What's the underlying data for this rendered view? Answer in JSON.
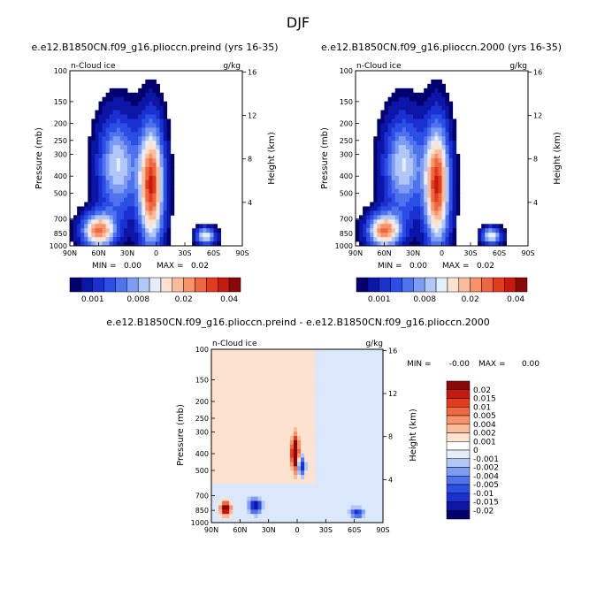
{
  "figure": {
    "title": "DJF",
    "field_label": "n-Cloud ice",
    "units": "g/kg",
    "left_axis_label": "Pressure (mb)",
    "right_axis_label": "Height (km)"
  },
  "palettes": {
    "absolute": [
      "#02006e",
      "#0c16a6",
      "#1a30d0",
      "#2b4ee6",
      "#4f72ee",
      "#7d9cf2",
      "#b0c8f8",
      "#e6eefc",
      "#fde2cf",
      "#fbbc9c",
      "#f7926a",
      "#f06640",
      "#e23c1c",
      "#c81a0c",
      "#8a0808"
    ],
    "difference": [
      "#02006e",
      "#0c16a6",
      "#1a30d0",
      "#2b4ee6",
      "#4f72ee",
      "#7d9cf2",
      "#b0c8f8",
      "#e6eefc",
      "#ffffff",
      "#fde2cf",
      "#fbbc9c",
      "#f7926a",
      "#f06640",
      "#e23c1c",
      "#c81a0c",
      "#8a0808"
    ]
  },
  "chart_data": [
    {
      "type": "heatmap",
      "title": "e.e12.B1850CN.f09_g16.plioccn.preind (yrs 16-35)",
      "field": "n-Cloud ice",
      "units": "g/kg",
      "xlabel": "",
      "ylabel": "Pressure (mb)",
      "y2label": "Height (km)",
      "x_ticks": [
        "90N",
        "60N",
        "30N",
        "0",
        "30S",
        "60S",
        "90S"
      ],
      "x_range": [
        90,
        -90
      ],
      "y_ticks": [
        100,
        150,
        200,
        250,
        300,
        400,
        500,
        700,
        850,
        1000
      ],
      "y_range": [
        1000,
        100
      ],
      "y_scale": "log",
      "y2_ticks": [
        4,
        8,
        12,
        16
      ],
      "stats": {
        "min_label": "MIN =",
        "min": "0.00",
        "max_label": "MAX =",
        "max": "0.02"
      },
      "colorbar": {
        "orientation": "horizontal",
        "labels": [
          "0.001",
          "0.008",
          "0.02",
          "0.04"
        ]
      },
      "features": [
        {
          "lat": 5,
          "p": 450,
          "amp": 1.0,
          "wlat": 9,
          "wlogp": 0.55
        },
        {
          "lat": 60,
          "p": 820,
          "amp": 0.85,
          "wlat": 12,
          "wlogp": 0.16
        },
        {
          "lat": -52,
          "p": 880,
          "amp": 0.62,
          "wlat": 7,
          "wlogp": 0.08
        },
        {
          "lat": 40,
          "p": 350,
          "amp": 0.55,
          "wlat": 14,
          "wlogp": 0.45
        }
      ]
    },
    {
      "type": "heatmap",
      "title": "e.e12.B1850CN.f09_g16.plioccn.2000 (yrs 16-35)",
      "field": "n-Cloud ice",
      "units": "g/kg",
      "xlabel": "",
      "ylabel": "Pressure (mb)",
      "y2label": "Height (km)",
      "x_ticks": [
        "90N",
        "60N",
        "30N",
        "0",
        "30S",
        "60S",
        "90S"
      ],
      "x_range": [
        90,
        -90
      ],
      "y_ticks": [
        100,
        150,
        200,
        250,
        300,
        400,
        500,
        700,
        850,
        1000
      ],
      "y_range": [
        1000,
        100
      ],
      "y_scale": "log",
      "y2_ticks": [
        4,
        8,
        12,
        16
      ],
      "stats": {
        "min_label": "MIN =",
        "min": "0.00",
        "max_label": "MAX =",
        "max": "0.02"
      },
      "colorbar": {
        "orientation": "horizontal",
        "labels": [
          "0.001",
          "0.008",
          "0.02",
          "0.04"
        ]
      },
      "features": [
        {
          "lat": 5,
          "p": 450,
          "amp": 1.0,
          "wlat": 9,
          "wlogp": 0.55
        },
        {
          "lat": 60,
          "p": 820,
          "amp": 0.85,
          "wlat": 12,
          "wlogp": 0.16
        },
        {
          "lat": -52,
          "p": 880,
          "amp": 0.62,
          "wlat": 7,
          "wlogp": 0.08
        },
        {
          "lat": 40,
          "p": 350,
          "amp": 0.55,
          "wlat": 14,
          "wlogp": 0.45
        }
      ]
    },
    {
      "type": "heatmap",
      "title": "e.e12.B1850CN.f09_g16.plioccn.preind - e.e12.B1850CN.f09_g16.plioccn.2000",
      "field": "n-Cloud ice",
      "units": "g/kg",
      "xlabel": "",
      "ylabel": "Pressure (mb)",
      "y2label": "Height (km)",
      "x_ticks": [
        "90N",
        "60N",
        "30N",
        "0",
        "30S",
        "60S",
        "90S"
      ],
      "x_range": [
        90,
        -90
      ],
      "y_ticks": [
        100,
        150,
        200,
        250,
        300,
        400,
        500,
        700,
        850,
        1000
      ],
      "y_range": [
        1000,
        100
      ],
      "y_scale": "log",
      "y2_ticks": [
        4,
        8,
        12,
        16
      ],
      "stats": {
        "min_label": "MIN =",
        "min": "-0.00",
        "max_label": "MAX =",
        "max": "0.00"
      },
      "colorbar": {
        "orientation": "vertical",
        "labels": [
          "0.02",
          "0.015",
          "0.01",
          "0.005",
          "0.004",
          "0.002",
          "0.001",
          "0",
          "-0.001",
          "-0.002",
          "-0.004",
          "-0.005",
          "-0.01",
          "-0.015",
          "-0.02"
        ]
      },
      "features": [
        {
          "lat": 2,
          "p": 400,
          "amp": 0.65,
          "wlat": 3,
          "wlogp": 0.18
        },
        {
          "lat": 75,
          "p": 830,
          "amp": 0.55,
          "wlat": 4,
          "wlogp": 0.07
        },
        {
          "lat": 44,
          "p": 800,
          "amp": -0.45,
          "wlat": 5,
          "wlogp": 0.07
        },
        {
          "lat": -4,
          "p": 470,
          "amp": -0.4,
          "wlat": 3,
          "wlogp": 0.09
        },
        {
          "lat": -63,
          "p": 880,
          "amp": -0.35,
          "wlat": 5,
          "wlogp": 0.05
        }
      ]
    }
  ]
}
